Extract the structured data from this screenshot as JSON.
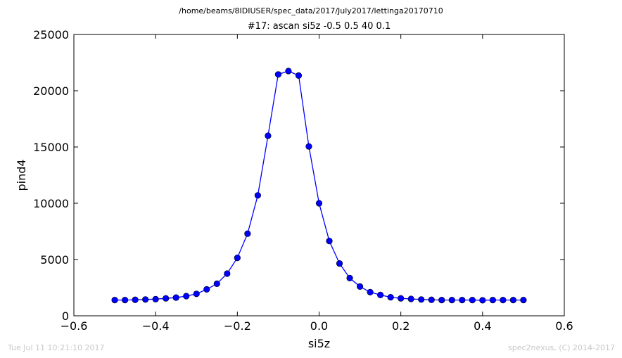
{
  "supertitle": "/home/beams/8IDIUSER/spec_data/2017/July2017/lettinga20170710",
  "footer": {
    "timestamp": "Tue Jul 11 10:21:10 2017",
    "credit": "spec2nexus, (C) 2014-2017"
  },
  "colors": {
    "series": "#0000ff",
    "axes": "#000000",
    "footer_text": "#c8c8c8"
  },
  "chart_data": {
    "type": "line",
    "title": "#17: ascan  si5z -0.5 0.5  40 0.1",
    "xlabel": "si5z",
    "ylabel": "pind4",
    "xlim": [
      -0.6,
      0.6
    ],
    "ylim": [
      0,
      25000
    ],
    "xticks": [
      "−0.6",
      "−0.4",
      "−0.2",
      "0.0",
      "0.2",
      "0.4",
      "0.6"
    ],
    "yticks": [
      "0",
      "5000",
      "10000",
      "15000",
      "20000",
      "25000"
    ],
    "grid": false,
    "marker": "circle",
    "series": [
      {
        "x": [
          -0.5,
          -0.475,
          -0.45,
          -0.425,
          -0.4,
          -0.375,
          -0.35,
          -0.325,
          -0.3,
          -0.275,
          -0.25,
          -0.225,
          -0.2,
          -0.175,
          -0.15,
          -0.125,
          -0.1,
          -0.075,
          -0.05,
          -0.025,
          0.0,
          0.025,
          0.05,
          0.075,
          0.1,
          0.125,
          0.15,
          0.175,
          0.2,
          0.225,
          0.25,
          0.275,
          0.3,
          0.325,
          0.35,
          0.375,
          0.4,
          0.425,
          0.45,
          0.475,
          0.5
        ],
        "y": [
          1400,
          1400,
          1420,
          1450,
          1480,
          1550,
          1620,
          1750,
          1950,
          2350,
          2850,
          3750,
          5150,
          7300,
          10700,
          16000,
          21450,
          21750,
          21350,
          15050,
          10000,
          6650,
          4650,
          3350,
          2600,
          2100,
          1850,
          1650,
          1550,
          1500,
          1450,
          1420,
          1400,
          1400,
          1400,
          1400,
          1380,
          1400,
          1400,
          1400,
          1400
        ]
      }
    ]
  }
}
